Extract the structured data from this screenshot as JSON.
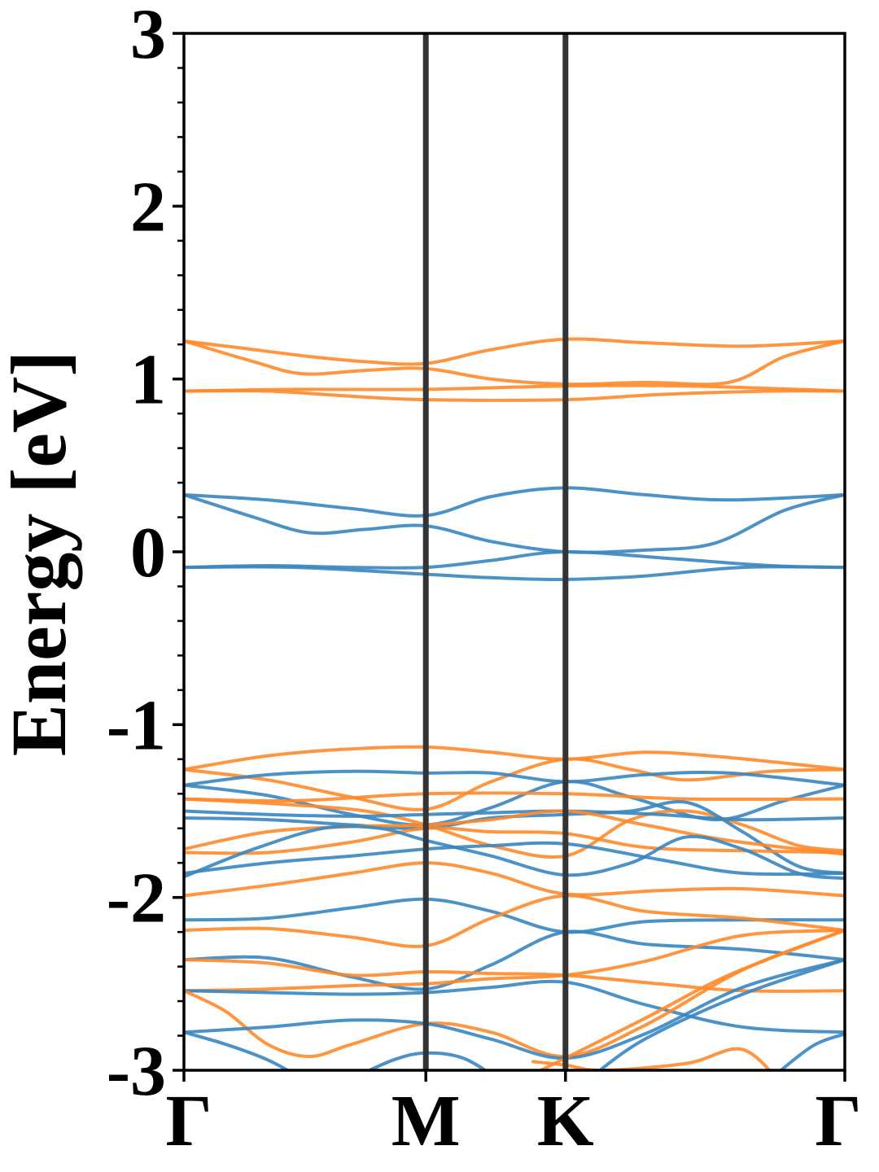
{
  "chart_data": {
    "type": "line",
    "title": "",
    "xlabel": "",
    "ylabel": "Energy [eV]",
    "ylim": [
      -3,
      3
    ],
    "y_ticks": [
      "3",
      "2",
      "1",
      "0",
      "-1",
      "-2",
      "-3"
    ],
    "y_tick_values": [
      3,
      2,
      1,
      0,
      -1,
      -2,
      -3
    ],
    "x_ticks": [
      "Γ",
      "M",
      "K",
      "Γ"
    ],
    "k_breaks": [
      0,
      1.732,
      2.732,
      4.732
    ],
    "grid": false,
    "legend": "none",
    "colors": {
      "spin_up": "#3a86c0",
      "spin_down": "#ff8a2a",
      "k_line": "#333333"
    },
    "series": [
      {
        "color_key": "spin_down",
        "x": [
          0,
          0.4,
          0.9,
          1.3,
          1.732,
          2.2,
          2.732,
          3.3,
          4.0,
          4.732
        ],
        "y": [
          1.22,
          1.18,
          1.13,
          1.1,
          1.09,
          1.17,
          1.23,
          1.21,
          1.19,
          1.22
        ]
      },
      {
        "color_key": "spin_down",
        "x": [
          0,
          0.5,
          0.85,
          1.3,
          1.732,
          2.2,
          2.732,
          3.3,
          3.9,
          4.3,
          4.732
        ],
        "y": [
          1.22,
          1.1,
          1.03,
          1.05,
          1.06,
          1.0,
          0.97,
          0.98,
          0.98,
          1.13,
          1.22
        ]
      },
      {
        "color_key": "spin_down",
        "x": [
          0,
          0.8,
          1.732,
          2.732,
          3.6,
          4.732
        ],
        "y": [
          0.93,
          0.94,
          0.94,
          0.96,
          0.96,
          0.93
        ]
      },
      {
        "color_key": "spin_down",
        "x": [
          0,
          0.6,
          1.2,
          1.732,
          2.732,
          3.4,
          4.2,
          4.732
        ],
        "y": [
          0.93,
          0.93,
          0.9,
          0.88,
          0.88,
          0.91,
          0.93,
          0.93
        ]
      },
      {
        "color_key": "spin_up",
        "x": [
          0,
          0.6,
          1.2,
          1.732,
          2.2,
          2.732,
          3.3,
          3.9,
          4.732
        ],
        "y": [
          0.33,
          0.3,
          0.25,
          0.21,
          0.32,
          0.37,
          0.33,
          0.3,
          0.33
        ]
      },
      {
        "color_key": "spin_up",
        "x": [
          0,
          0.5,
          0.9,
          1.3,
          1.732,
          2.2,
          2.732,
          3.3,
          3.8,
          4.3,
          4.732
        ],
        "y": [
          0.33,
          0.2,
          0.11,
          0.13,
          0.15,
          0.06,
          0.0,
          0.01,
          0.05,
          0.24,
          0.33
        ]
      },
      {
        "color_key": "spin_up",
        "x": [
          0,
          0.6,
          1.2,
          1.732,
          2.2,
          2.732,
          3.5,
          4.2,
          4.732
        ],
        "y": [
          -0.09,
          -0.08,
          -0.09,
          -0.09,
          -0.05,
          0.0,
          -0.04,
          -0.08,
          -0.09
        ]
      },
      {
        "color_key": "spin_up",
        "x": [
          0,
          0.8,
          1.732,
          2.2,
          2.732,
          3.3,
          4.0,
          4.732
        ],
        "y": [
          -0.09,
          -0.09,
          -0.13,
          -0.15,
          -0.16,
          -0.14,
          -0.09,
          -0.09
        ]
      },
      {
        "color_key": "spin_down",
        "x": [
          0,
          0.6,
          1.2,
          1.732,
          2.2,
          2.732,
          3.3,
          3.9,
          4.732
        ],
        "y": [
          -1.26,
          -1.18,
          -1.14,
          -1.13,
          -1.16,
          -1.2,
          -1.16,
          -1.19,
          -1.26
        ]
      },
      {
        "color_key": "spin_down",
        "x": [
          0,
          0.6,
          1.2,
          1.732,
          2.2,
          2.732,
          3.2,
          3.6,
          4.2,
          4.732
        ],
        "y": [
          -1.26,
          -1.32,
          -1.42,
          -1.49,
          -1.33,
          -1.2,
          -1.26,
          -1.32,
          -1.27,
          -1.26
        ]
      },
      {
        "color_key": "spin_up",
        "x": [
          0,
          0.6,
          1.2,
          1.732,
          2.2,
          2.732,
          3.3,
          3.9,
          4.732
        ],
        "y": [
          -1.35,
          -1.29,
          -1.27,
          -1.28,
          -1.28,
          -1.33,
          -1.29,
          -1.28,
          -1.35
        ]
      },
      {
        "color_key": "spin_up",
        "x": [
          0,
          0.6,
          1.2,
          1.732,
          2.2,
          2.732,
          3.2,
          3.8,
          4.3,
          4.732
        ],
        "y": [
          -1.35,
          -1.41,
          -1.52,
          -1.58,
          -1.48,
          -1.33,
          -1.42,
          -1.55,
          -1.44,
          -1.35
        ]
      },
      {
        "color_key": "spin_down",
        "x": [
          0,
          0.8,
          1.732,
          2.732,
          3.6,
          4.732
        ],
        "y": [
          -1.43,
          -1.44,
          -1.4,
          -1.4,
          -1.43,
          -1.43
        ]
      },
      {
        "color_key": "spin_down",
        "x": [
          0,
          0.7,
          1.3,
          1.732,
          2.2,
          2.732,
          3.2,
          3.6,
          4.0,
          4.4,
          4.732
        ],
        "y": [
          -1.43,
          -1.46,
          -1.5,
          -1.58,
          -1.7,
          -1.76,
          -1.55,
          -1.5,
          -1.58,
          -1.7,
          -1.73
        ]
      },
      {
        "color_key": "spin_up",
        "x": [
          0,
          0.6,
          1.2,
          1.732,
          2.2,
          2.732,
          3.4,
          4.0,
          4.732
        ],
        "y": [
          -1.5,
          -1.52,
          -1.53,
          -1.52,
          -1.51,
          -1.5,
          -1.52,
          -1.55,
          -1.54
        ]
      },
      {
        "color_key": "spin_up",
        "x": [
          0,
          0.6,
          1.2,
          1.732,
          2.2,
          2.732,
          3.2,
          3.6,
          4.0,
          4.4,
          4.732
        ],
        "y": [
          -1.54,
          -1.55,
          -1.58,
          -1.6,
          -1.54,
          -1.52,
          -1.5,
          -1.45,
          -1.62,
          -1.82,
          -1.86
        ]
      },
      {
        "color_key": "spin_down",
        "x": [
          0,
          0.6,
          1.2,
          1.732,
          2.2,
          2.732,
          3.3,
          3.9,
          4.732
        ],
        "y": [
          -1.72,
          -1.62,
          -1.59,
          -1.58,
          -1.55,
          -1.5,
          -1.58,
          -1.67,
          -1.75
        ]
      },
      {
        "color_key": "spin_down",
        "x": [
          0,
          0.6,
          1.2,
          1.732,
          2.2,
          2.732,
          3.3,
          4.0,
          4.732
        ],
        "y": [
          -1.74,
          -1.74,
          -1.68,
          -1.6,
          -1.62,
          -1.63,
          -1.71,
          -1.73,
          -1.74
        ]
      },
      {
        "color_key": "spin_up",
        "x": [
          0,
          0.5,
          1.0,
          1.4,
          1.732,
          2.2,
          2.732,
          3.2,
          3.6,
          4.0,
          4.4,
          4.732
        ],
        "y": [
          -1.88,
          -1.72,
          -1.6,
          -1.6,
          -1.67,
          -1.76,
          -1.87,
          -1.8,
          -1.65,
          -1.72,
          -1.86,
          -1.89
        ]
      },
      {
        "color_key": "spin_up",
        "x": [
          0,
          0.6,
          1.2,
          1.732,
          2.2,
          2.732,
          3.4,
          4.0,
          4.732
        ],
        "y": [
          -1.86,
          -1.8,
          -1.76,
          -1.72,
          -1.7,
          -1.69,
          -1.78,
          -1.86,
          -1.86
        ]
      },
      {
        "color_key": "spin_down",
        "x": [
          0,
          0.6,
          1.2,
          1.732,
          2.2,
          2.732,
          3.4,
          4.0,
          4.732
        ],
        "y": [
          -1.99,
          -1.93,
          -1.86,
          -1.8,
          -1.86,
          -1.98,
          -1.96,
          -1.95,
          -1.99
        ]
      },
      {
        "color_key": "spin_up",
        "x": [
          0,
          0.6,
          1.2,
          1.732,
          2.2,
          2.732,
          3.3,
          4.0,
          4.732
        ],
        "y": [
          -2.13,
          -2.12,
          -2.06,
          -2.01,
          -2.08,
          -2.2,
          -2.14,
          -2.13,
          -2.13
        ]
      },
      {
        "color_key": "spin_down",
        "x": [
          0,
          0.6,
          1.2,
          1.732,
          2.2,
          2.732,
          3.3,
          4.0,
          4.732
        ],
        "y": [
          -2.19,
          -2.18,
          -2.23,
          -2.28,
          -2.12,
          -1.99,
          -2.08,
          -2.12,
          -2.19
        ]
      },
      {
        "color_key": "spin_up",
        "x": [
          0,
          0.6,
          1.2,
          1.732,
          2.2,
          2.732,
          3.3,
          4.0,
          4.732
        ],
        "y": [
          -2.36,
          -2.35,
          -2.46,
          -2.53,
          -2.39,
          -2.2,
          -2.27,
          -2.3,
          -2.36
        ]
      },
      {
        "color_key": "spin_down",
        "x": [
          0,
          0.6,
          1.2,
          1.732,
          2.2,
          2.732,
          3.4,
          4.0,
          4.732
        ],
        "y": [
          -2.36,
          -2.38,
          -2.45,
          -2.43,
          -2.44,
          -2.45,
          -2.5,
          -2.54,
          -2.54
        ]
      },
      {
        "color_key": "spin_down",
        "x": [
          0,
          0.6,
          1.2,
          1.732,
          2.2,
          2.732,
          3.3,
          4.0,
          4.732
        ],
        "y": [
          -2.54,
          -2.53,
          -2.51,
          -2.5,
          -2.47,
          -2.45,
          -2.37,
          -2.22,
          -2.19
        ]
      },
      {
        "color_key": "spin_up",
        "x": [
          0,
          0.6,
          1.2,
          1.732,
          2.2,
          2.732,
          3.3,
          4.0,
          4.732
        ],
        "y": [
          -2.54,
          -2.55,
          -2.56,
          -2.55,
          -2.52,
          -2.49,
          -2.62,
          -2.75,
          -2.78
        ]
      },
      {
        "color_key": "spin_down",
        "x": [
          0,
          0.3,
          0.6,
          0.9,
          1.2,
          1.732,
          2.2,
          2.732,
          3.3,
          4.0,
          4.732
        ],
        "y": [
          -2.54,
          -2.66,
          -2.85,
          -2.92,
          -2.85,
          -2.73,
          -2.78,
          -2.92,
          -2.74,
          -2.42,
          -2.19
        ]
      },
      {
        "color_key": "spin_up",
        "x": [
          0,
          0.6,
          1.2,
          1.732,
          2.2,
          2.732,
          3.3,
          4.0,
          4.732
        ],
        "y": [
          -2.78,
          -2.75,
          -2.71,
          -2.73,
          -2.82,
          -2.93,
          -2.79,
          -2.52,
          -2.36
        ]
      },
      {
        "color_key": "spin_down",
        "x": [
          2.3,
          2.732,
          3.3,
          3.9,
          4.732
        ],
        "y": [
          -3.1,
          -2.93,
          -2.7,
          -2.45,
          -2.19
        ]
      },
      {
        "color_key": "spin_down",
        "x": [
          2.5,
          2.732,
          3.0,
          3.6,
          4.0,
          4.3
        ],
        "y": [
          -2.95,
          -2.97,
          -3.0,
          -2.96,
          -2.88,
          -3.1
        ]
      },
      {
        "color_key": "spin_up",
        "x": [
          0,
          0.3,
          0.6,
          0.85
        ],
        "y": [
          -2.78,
          -2.85,
          -2.94,
          -3.05
        ]
      },
      {
        "color_key": "spin_up",
        "x": [
          1.2,
          1.5,
          1.732,
          2.0,
          2.25
        ],
        "y": [
          -3.05,
          -2.94,
          -2.9,
          -2.93,
          -3.05
        ]
      },
      {
        "color_key": "spin_up",
        "x": [
          2.9,
          3.3,
          4.0,
          4.732
        ],
        "y": [
          -3.05,
          -2.82,
          -2.56,
          -2.36
        ]
      },
      {
        "color_key": "spin_up",
        "x": [
          4.2,
          4.5,
          4.732
        ],
        "y": [
          -3.05,
          -2.86,
          -2.79
        ]
      }
    ]
  }
}
